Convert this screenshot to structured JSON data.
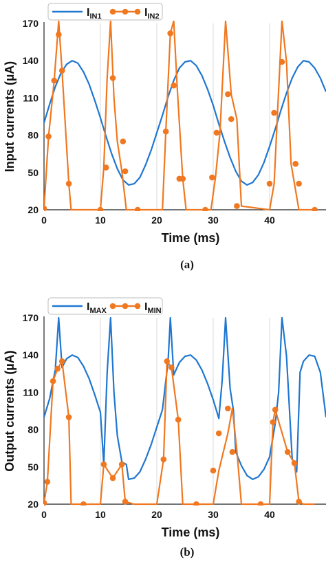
{
  "colors": {
    "blue": "#1f77d0",
    "orange": "#f07820",
    "grid": "#d9d9d9"
  },
  "chart_data": [
    {
      "type": "line",
      "caption": "(a)",
      "xlabel": "Time (ms)",
      "ylabel": "Input currents (µA)",
      "xlim": [
        0,
        50
      ],
      "ylim": [
        20,
        170
      ],
      "xticks": [
        0,
        10,
        20,
        30,
        40
      ],
      "yticks": [
        20,
        50,
        80,
        110,
        140,
        170
      ],
      "grid": "vertical",
      "legend": "top-left",
      "series": [
        {
          "name": "I",
          "sub": "IN1",
          "color": "#1f77d0",
          "markers": false,
          "x": [
            0,
            1,
            2,
            3,
            4,
            5,
            6,
            7,
            8,
            9,
            10,
            11,
            12,
            13,
            14,
            15,
            16,
            17,
            18,
            19,
            20,
            21,
            22,
            23,
            24,
            25,
            26,
            27,
            28,
            29,
            30,
            31,
            32,
            33,
            34,
            35,
            36,
            37,
            38,
            39,
            40,
            41,
            42,
            43,
            44,
            45,
            46,
            47,
            48,
            49,
            50
          ],
          "y": [
            90,
            105,
            119,
            130,
            137,
            140,
            138,
            131,
            121,
            108,
            94,
            79,
            65,
            53,
            44,
            40,
            41,
            46,
            56,
            68,
            82,
            96,
            111,
            124,
            134,
            139,
            140,
            136,
            128,
            117,
            104,
            89,
            75,
            62,
            51,
            43,
            40,
            42,
            48,
            58,
            71,
            85,
            100,
            114,
            126,
            135,
            140,
            139,
            134,
            126,
            115
          ]
        },
        {
          "name": "I",
          "sub": "IN2",
          "color": "#f07820",
          "markers": true,
          "x": [
            0,
            0.8,
            1.8,
            2.6,
            3.2,
            4.4,
            4.8,
            10,
            10.6,
            11.2,
            11.8,
            12.4,
            13,
            13.8,
            14.6,
            15.2,
            16.6,
            21,
            21.6,
            22.4,
            23,
            23.6,
            24.6,
            25.2,
            28.6,
            29.6,
            30.4,
            31.2,
            32.2,
            33.2,
            34.2,
            35,
            40,
            40.8,
            41.4,
            42.2,
            43,
            43.8,
            45.2,
            46.2,
            48
          ],
          "y": [
            21,
            79,
            124,
            172,
            132,
            41,
            20,
            20,
            54,
            126,
            172,
            110,
            75,
            51,
            20,
            20,
            20,
            20,
            83,
            162,
            172,
            120,
            45,
            20,
            20,
            20,
            46,
            82,
            172,
            113,
            93,
            23,
            20,
            41,
            98,
            172,
            139,
            57,
            20,
            20,
            20
          ],
          "marker_x": [
            0,
            0.8,
            1.8,
            2.6,
            3.2,
            4.4,
            10,
            11,
            12.2,
            14,
            14.4,
            16.6,
            21.6,
            22.4,
            23,
            24,
            24.6,
            28.6,
            29.8,
            30.6,
            32.6,
            33.2,
            34.2,
            40,
            40.8,
            42.2,
            44.6,
            45.2,
            48
          ],
          "marker_y": [
            21,
            79,
            124,
            161,
            132,
            41,
            20,
            54,
            126,
            75,
            51,
            20,
            83,
            162,
            120,
            45,
            45,
            20,
            46,
            82,
            113,
            93,
            23,
            41,
            98,
            139,
            57,
            41,
            20
          ]
        }
      ]
    },
    {
      "type": "line",
      "caption": "(b)",
      "xlabel": "Time (ms)",
      "ylabel": "Output currents (µA)",
      "xlim": [
        0,
        50
      ],
      "ylim": [
        20,
        170
      ],
      "xticks": [
        0,
        10,
        20,
        30,
        40
      ],
      "yticks": [
        20,
        50,
        80,
        110,
        140,
        170
      ],
      "grid": "vertical",
      "legend": "top-left",
      "series": [
        {
          "name": "I",
          "sub": "MAX",
          "color": "#1f77d0",
          "markers": false,
          "x": [
            0,
            1,
            2,
            2.6,
            3.2,
            4,
            5,
            6,
            7,
            8,
            9,
            10,
            10.6,
            11.2,
            11.8,
            12.4,
            13,
            13.8,
            14.6,
            15,
            16,
            17,
            18,
            19,
            20,
            21,
            22,
            22.4,
            23,
            24,
            25,
            26,
            27,
            28,
            29,
            30,
            31,
            31.6,
            32.2,
            33,
            33.6,
            34,
            35,
            36,
            37,
            38,
            39,
            40,
            41,
            41.6,
            42.2,
            43,
            44,
            44.8,
            45.4,
            46,
            47,
            48,
            49,
            50
          ],
          "y": [
            90,
            105,
            128,
            170,
            130,
            137,
            140,
            138,
            131,
            121,
            108,
            94,
            52,
            126,
            170,
            110,
            75,
            54,
            52,
            40,
            41,
            46,
            56,
            68,
            82,
            96,
            135,
            170,
            124,
            134,
            139,
            140,
            136,
            128,
            117,
            104,
            89,
            120,
            170,
            113,
            95,
            62,
            51,
            43,
            40,
            42,
            48,
            58,
            85,
            110,
            170,
            139,
            57,
            46,
            126,
            135,
            140,
            139,
            126,
            90
          ]
        },
        {
          "name": "I",
          "sub": "MIN",
          "color": "#f07820",
          "markers": true,
          "x": [
            0,
            0.6,
            1.6,
            2.4,
            3.2,
            4.4,
            4.8,
            6,
            10,
            10.6,
            12.2,
            13.8,
            14.4,
            16,
            20,
            21.2,
            21.8,
            22.6,
            23.8,
            24.6,
            25,
            27,
            30,
            31,
            32.6,
            33.4,
            34.2,
            35,
            36,
            40,
            40.6,
            41,
            43.2,
            44.4,
            45.2,
            46,
            48
          ],
          "y": [
            21,
            38,
            119,
            129,
            135,
            90,
            20,
            20,
            20,
            52,
            41,
            52,
            22,
            20,
            20,
            56,
            135,
            130,
            88,
            20,
            20,
            20,
            20,
            47,
            77,
            97,
            63,
            20,
            20,
            20,
            86,
            96,
            62,
            53,
            22,
            20,
            20
          ],
          "marker_x": [
            0,
            0.6,
            1.6,
            2.4,
            3.2,
            4.4,
            7,
            10.6,
            12.2,
            13.8,
            14.4,
            21.2,
            21.8,
            22.6,
            23.8,
            27,
            30,
            31,
            32.6,
            33.4,
            38.4,
            40.6,
            41,
            43.2,
            44.4,
            45.2
          ],
          "marker_y": [
            21,
            38,
            119,
            129,
            135,
            90,
            20,
            52,
            41,
            52,
            22,
            56,
            135,
            130,
            88,
            20,
            47,
            77,
            97,
            62,
            20,
            86,
            96,
            62,
            53,
            22
          ]
        }
      ]
    }
  ]
}
